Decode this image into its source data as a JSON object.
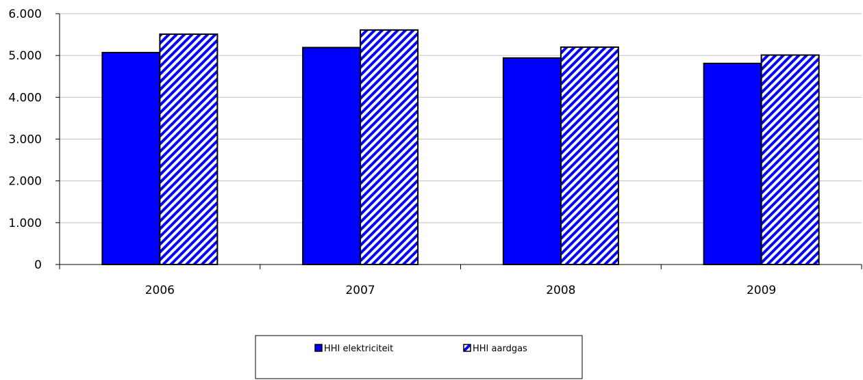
{
  "chart_data": {
    "type": "bar",
    "title": "",
    "xlabel": "",
    "ylabel": "",
    "categories": [
      "2006",
      "2007",
      "2008",
      "2009"
    ],
    "series": [
      {
        "name": "HHI elektriciteit",
        "values": [
          5070,
          5190,
          4940,
          4810
        ],
        "color": "#0000ff",
        "pattern": "solid"
      },
      {
        "name": "HHI aardgas",
        "values": [
          5510,
          5610,
          5200,
          5010
        ],
        "color": "#0000ff",
        "pattern": "diagonal-hatch"
      }
    ],
    "ylim": [
      0,
      6000
    ],
    "yticks": [
      "0",
      "1.000",
      "2.000",
      "3.000",
      "4.000",
      "5.000",
      "6.000"
    ],
    "grid": true,
    "legend_position": "bottom-center"
  }
}
